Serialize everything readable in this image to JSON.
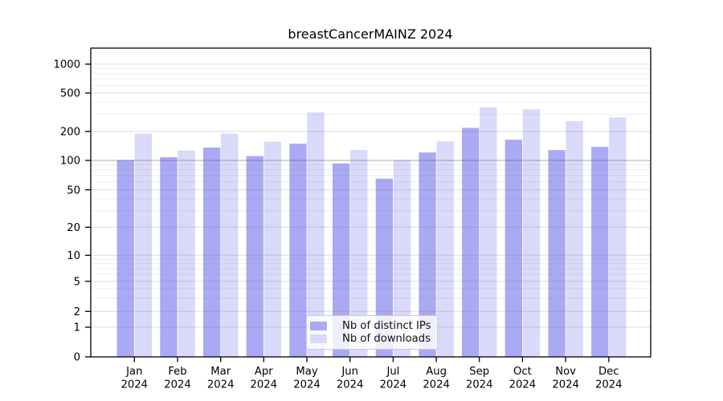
{
  "chart_data": {
    "type": "bar",
    "title": "breastCancerMAINZ 2024",
    "categories": [
      "Jan 2024",
      "Feb 2024",
      "Mar 2024",
      "Apr 2024",
      "May 2024",
      "Jun 2024",
      "Jul 2024",
      "Aug 2024",
      "Sep 2024",
      "Oct 2024",
      "Nov 2024",
      "Dec 2024"
    ],
    "series": [
      {
        "name": "Nb of distinct IPs",
        "color": "#a9a9f4",
        "values": [
          101,
          108,
          136,
          111,
          149,
          93,
          65,
          121,
          218,
          164,
          128,
          138
        ]
      },
      {
        "name": "Nb of downloads",
        "color": "#d9d9f9",
        "values": [
          190,
          127,
          190,
          157,
          315,
          128,
          101,
          158,
          356,
          340,
          256,
          280
        ]
      }
    ],
    "xlabel": "",
    "ylabel": "",
    "yscale": "pseudo-log",
    "yticks": [
      0,
      1,
      2,
      5,
      10,
      20,
      50,
      100,
      200,
      500,
      1000
    ],
    "ylim": [
      0,
      1470
    ],
    "grid": true,
    "legend_position": "bottom-center",
    "colors": {
      "axis": "#000000",
      "grid_minor": "#efefef",
      "grid_major": "#dadada",
      "grid_hundred": "#b0b0b0",
      "background": "#ffffff"
    }
  }
}
